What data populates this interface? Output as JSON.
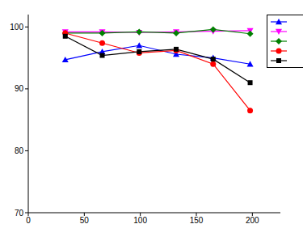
{
  "chart_data": {
    "type": "line",
    "x": [
      33,
      66,
      99,
      132,
      165,
      198
    ],
    "xlim": [
      0,
      225
    ],
    "xticks": [
      0,
      50,
      100,
      150,
      200
    ],
    "ylim": [
      70,
      102
    ],
    "yticks": [
      70,
      80,
      90,
      100
    ],
    "grid": false,
    "legend": "top right",
    "series": [
      {
        "color": "#0000ff",
        "marker": "triangle",
        "values": [
          94.7,
          96.0,
          97.0,
          95.6,
          95.0,
          94.0
        ]
      },
      {
        "color": "#ff00ff",
        "marker": "triangle-down",
        "values": [
          99.2,
          99.2,
          99.1,
          99.2,
          99.3,
          99.4
        ]
      },
      {
        "color": "#008000",
        "marker": "diamond",
        "values": [
          99.0,
          99.0,
          99.2,
          99.0,
          99.6,
          98.9
        ]
      },
      {
        "color": "#ff0000",
        "marker": "circle",
        "values": [
          99.0,
          97.4,
          95.8,
          96.2,
          94.0,
          86.5
        ]
      },
      {
        "color": "#000000",
        "marker": "square",
        "values": [
          98.5,
          95.4,
          96.0,
          96.4,
          94.8,
          91.0
        ]
      }
    ]
  }
}
